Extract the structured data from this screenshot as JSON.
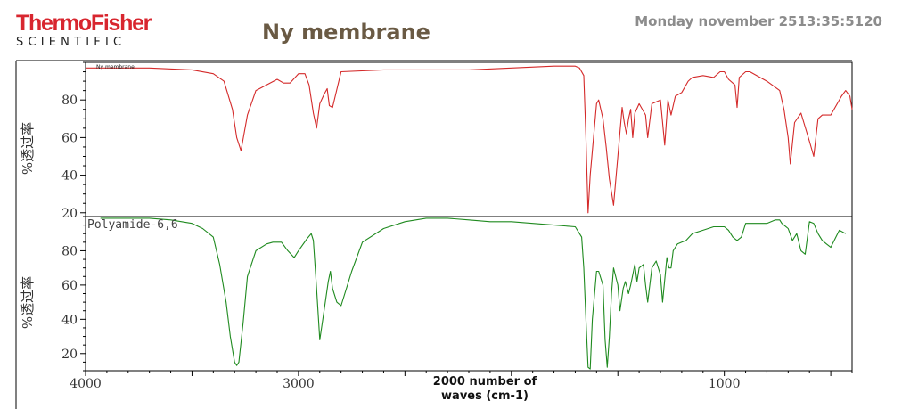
{
  "header": {
    "logo_top": "ThermoFisher",
    "logo_bottom": "SCIENTIFIC",
    "title": "Ny membrane",
    "datetime": "Monday november 2513:35:5120"
  },
  "colors": {
    "sample": "#d42a2a",
    "reference": "#1f8a1f",
    "axis": "#000000"
  },
  "chart_data": {
    "type": "line",
    "xlabel": "2000 number of waves (cm-1)",
    "xlabel_lines": [
      "2000 number of",
      "waves (cm-1)"
    ],
    "xlim": [
      4000,
      400
    ],
    "xticks": [
      4000,
      3000,
      1000
    ],
    "xtick_labels": [
      "4000",
      "3000",
      "1000"
    ],
    "panels": [
      {
        "ylabel": "%透过率",
        "ylim": [
          18,
          100
        ],
        "yticks": [
          20,
          40,
          60,
          80
        ],
        "legend": "Ny membrane",
        "series": [
          {
            "name": "Ny membrane",
            "x": [
              4000,
              3700,
              3500,
              3400,
              3350,
              3310,
              3290,
              3270,
              3240,
              3200,
              3100,
              3070,
              3040,
              3000,
              2970,
              2950,
              2930,
              2915,
              2900,
              2880,
              2865,
              2855,
              2840,
              2800,
              2600,
              2400,
              2200,
              2000,
              1800,
              1700,
              1680,
              1660,
              1650,
              1640,
              1630,
              1600,
              1590,
              1570,
              1555,
              1540,
              1520,
              1500,
              1480,
              1470,
              1460,
              1450,
              1440,
              1430,
              1420,
              1400,
              1380,
              1370,
              1360,
              1340,
              1300,
              1280,
              1265,
              1250,
              1230,
              1200,
              1170,
              1150,
              1100,
              1050,
              1020,
              1000,
              980,
              950,
              940,
              930,
              900,
              880,
              800,
              740,
              720,
              700,
              690,
              670,
              640,
              600,
              580,
              560,
              540,
              500,
              450,
              430,
              410,
              400
            ],
            "y": [
              97,
              97,
              96,
              94,
              90,
              75,
              60,
              53,
              72,
              85,
              91,
              89,
              89,
              94,
              94,
              88,
              73,
              65,
              78,
              83,
              86,
              77,
              76,
              95,
              96,
              96,
              96,
              97,
              98,
              98,
              97,
              93,
              60,
              20,
              40,
              78,
              80,
              70,
              55,
              38,
              24,
              50,
              76,
              68,
              62,
              70,
              75,
              60,
              73,
              78,
              74,
              72,
              60,
              78,
              80,
              56,
              80,
              72,
              82,
              84,
              90,
              92,
              93,
              92,
              95,
              95,
              91,
              88,
              76,
              92,
              95,
              95,
              90,
              85,
              75,
              60,
              46,
              68,
              73,
              58,
              50,
              70,
              72,
              72,
              82,
              85,
              82,
              75
            ]
          }
        ]
      },
      {
        "ylabel": "%透过率",
        "ylim": [
          10,
          100
        ],
        "yticks": [
          20,
          40,
          60,
          80
        ],
        "legend": "Polyamide-6,6",
        "series": [
          {
            "name": "Polyamide-6,6",
            "x": [
              3930,
              3800,
              3700,
              3600,
              3500,
              3450,
              3400,
              3370,
              3340,
              3320,
              3300,
              3290,
              3280,
              3260,
              3240,
              3200,
              3150,
              3120,
              3100,
              3080,
              3050,
              3020,
              3000,
              2960,
              2940,
              2930,
              2915,
              2900,
              2880,
              2860,
              2850,
              2840,
              2820,
              2800,
              2750,
              2700,
              2600,
              2500,
              2400,
              2300,
              2200,
              2100,
              2000,
              1900,
              1800,
              1700,
              1680,
              1670,
              1660,
              1650,
              1640,
              1630,
              1620,
              1600,
              1590,
              1570,
              1560,
              1550,
              1540,
              1530,
              1520,
              1500,
              1490,
              1475,
              1465,
              1450,
              1440,
              1420,
              1410,
              1400,
              1380,
              1370,
              1360,
              1340,
              1320,
              1300,
              1290,
              1270,
              1260,
              1250,
              1240,
              1220,
              1200,
              1180,
              1150,
              1100,
              1050,
              1000,
              980,
              960,
              940,
              920,
              900,
              860,
              800,
              760,
              740,
              730,
              700,
              680,
              660,
              640,
              620,
              600,
              580,
              560,
              540,
              520,
              500,
              460,
              430
            ],
            "y": [
              99,
              99,
              99,
              98,
              96,
              93,
              88,
              72,
              50,
              30,
              15,
              13,
              15,
              38,
              65,
              80,
              84,
              85,
              85,
              85,
              80,
              76,
              80,
              87,
              90,
              86,
              58,
              28,
              45,
              62,
              68,
              58,
              50,
              48,
              68,
              85,
              93,
              97,
              99,
              99,
              98,
              97,
              97,
              96,
              95,
              94,
              90,
              88,
              70,
              40,
              12,
              11,
              40,
              68,
              68,
              60,
              28,
              12,
              30,
              55,
              70,
              60,
              45,
              58,
              62,
              55,
              60,
              72,
              62,
              70,
              72,
              60,
              50,
              70,
              74,
              66,
              50,
              76,
              70,
              70,
              80,
              84,
              85,
              86,
              90,
              92,
              94,
              94,
              92,
              88,
              86,
              88,
              96,
              96,
              96,
              98,
              98,
              96,
              93,
              86,
              90,
              80,
              78,
              97,
              96,
              90,
              86,
              84,
              82,
              92,
              90
            ]
          }
        ]
      }
    ]
  }
}
